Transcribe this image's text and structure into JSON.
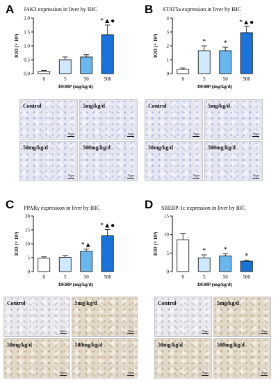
{
  "panels": [
    {
      "letter": "A",
      "title": "JAK3 expression in liver by IHC",
      "ylabel": "IOD (× 10⁴)",
      "xlabel": "DEHP (mg/kg/d)",
      "photo_labels": [
        "Control",
        "5mg/kg/d",
        "50mg/kg/d",
        "500mg/kg/d"
      ],
      "scale_text": "50μm"
    },
    {
      "letter": "B",
      "title": "STAT5a expression in liver by IHC",
      "ylabel": "IOD (× 10⁴)",
      "xlabel": "DEHP (mg/kg/d)",
      "photo_labels": [
        "Control",
        "5mg/kg/d",
        "50mg/kg/d",
        "500mg/kg/d"
      ],
      "scale_text": "50μm"
    },
    {
      "letter": "C",
      "title": "PPARγ expression in liver by IHC",
      "ylabel": "IOD (× 10⁴)",
      "xlabel": "DEHP (mg/kg/d)",
      "photo_labels": [
        "Control",
        "5mg/kg/d",
        "50mg/kg/d",
        "500mg/kg/d"
      ],
      "scale_text": "50μm"
    },
    {
      "letter": "D",
      "title": "SREBP-1c expression in liver by IHC",
      "ylabel": "IOD (× 10⁴)",
      "xlabel": "DEHP (mg/kg/d)",
      "photo_labels": [
        "Control",
        "5mg/kg/d",
        "50mg/kg/d",
        "500mg/kg/d"
      ],
      "scale_text": "50μm"
    }
  ],
  "chart_data": [
    {
      "type": "bar",
      "title": "JAK3 expression in liver by IHC",
      "xlabel": "DEHP (mg/kg/d)",
      "ylabel": "IOD (× 10⁴)",
      "categories": [
        "0",
        "5",
        "50",
        "500"
      ],
      "values": [
        0.08,
        0.5,
        0.6,
        1.4
      ],
      "errors": [
        0.03,
        0.1,
        0.08,
        0.35
      ],
      "significance": [
        "",
        "",
        "",
        "*▲●"
      ],
      "ylim": [
        0,
        2.0
      ],
      "yticks": [
        "0.0",
        "0.5",
        "1.0",
        "1.5",
        "2.0"
      ],
      "bar_colors": [
        "#ffffff",
        "#cfe8fb",
        "#6ab7f0",
        "#1a73d9"
      ]
    },
    {
      "type": "bar",
      "title": "STAT5a expression in liver by IHC",
      "xlabel": "DEHP (mg/kg/d)",
      "ylabel": "IOD (× 10⁴)",
      "categories": [
        "0",
        "5",
        "50",
        "500"
      ],
      "values": [
        0.3,
        1.65,
        1.65,
        2.95
      ],
      "errors": [
        0.1,
        0.35,
        0.25,
        0.45
      ],
      "significance": [
        "",
        "*",
        "*",
        "*▲●"
      ],
      "ylim": [
        0,
        4
      ],
      "yticks": [
        "0",
        "1",
        "2",
        "3",
        "4"
      ],
      "bar_colors": [
        "#ffffff",
        "#cfe8fb",
        "#6ab7f0",
        "#1a73d9"
      ]
    },
    {
      "type": "bar",
      "title": "PPARγ expression in liver by IHC",
      "xlabel": "DEHP (mg/kg/d)",
      "ylabel": "IOD (× 10⁴)",
      "categories": [
        "0",
        "5",
        "50",
        "500"
      ],
      "values": [
        4.8,
        5.1,
        7.3,
        12.9
      ],
      "errors": [
        0.5,
        0.7,
        0.8,
        2.2
      ],
      "significance": [
        "",
        "",
        "*▲",
        "*▲●"
      ],
      "ylim": [
        0,
        20
      ],
      "yticks": [
        "0",
        "5",
        "10",
        "15",
        "20"
      ],
      "bar_colors": [
        "#ffffff",
        "#cfe8fb",
        "#6ab7f0",
        "#1a73d9"
      ]
    },
    {
      "type": "bar",
      "title": "SREBP-1c expression in liver by IHC",
      "xlabel": "DEHP (mg/kg/d)",
      "ylabel": "IOD (× 10⁴)",
      "categories": [
        "0",
        "5",
        "50",
        "500"
      ],
      "values": [
        8.6,
        3.7,
        4.2,
        2.8
      ],
      "errors": [
        1.6,
        0.8,
        0.6,
        0.3
      ],
      "significance": [
        "",
        "*",
        "*",
        "*"
      ],
      "ylim": [
        0,
        15
      ],
      "yticks": [
        "0",
        "5",
        "10",
        "15"
      ],
      "bar_colors": [
        "#ffffff",
        "#cfe8fb",
        "#6ab7f0",
        "#1a73d9"
      ]
    }
  ],
  "photo_tints": {
    "top": "#e4e6f2",
    "bottom_control": "#ebe8ec",
    "bottom_treated": "#e2d8c8"
  }
}
